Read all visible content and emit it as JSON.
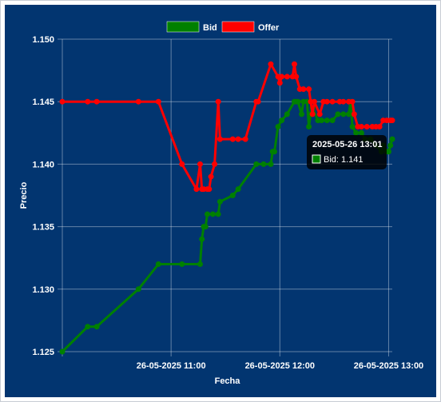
{
  "chart_data": {
    "type": "line",
    "xlabel": "Fecha",
    "ylabel": "Precio",
    "ylim": [
      1.125,
      1.15
    ],
    "yticks": [
      "1.125",
      "1.130",
      "1.135",
      "1.140",
      "1.145",
      "1.150"
    ],
    "xticks": [
      {
        "label": "26-05-2025 11:00",
        "minutes": 660
      },
      {
        "label": "26-05-2025 12:00",
        "minutes": 720
      },
      {
        "label": "26-05-2025 13:00",
        "minutes": 780
      }
    ],
    "xlim_minutes": [
      600,
      782
    ],
    "grid": true,
    "legend_position": "top",
    "series": [
      {
        "name": "Bid",
        "color": "#008000",
        "points": [
          [
            600,
            1.125
          ],
          [
            614,
            1.127
          ],
          [
            619,
            1.127
          ],
          [
            642,
            1.13
          ],
          [
            653,
            1.132
          ],
          [
            666,
            1.132
          ],
          [
            676,
            1.132
          ],
          [
            677,
            1.134
          ],
          [
            678,
            1.135
          ],
          [
            679,
            1.135
          ],
          [
            680,
            1.136
          ],
          [
            683,
            1.136
          ],
          [
            686,
            1.136
          ],
          [
            687,
            1.137
          ],
          [
            694,
            1.1375
          ],
          [
            697,
            1.138
          ],
          [
            707,
            1.14
          ],
          [
            711,
            1.14
          ],
          [
            715,
            1.14
          ],
          [
            716,
            1.141
          ],
          [
            717,
            1.141
          ],
          [
            719,
            1.143
          ],
          [
            721,
            1.1435
          ],
          [
            724,
            1.144
          ],
          [
            728,
            1.145
          ],
          [
            729,
            1.145
          ],
          [
            730,
            1.145
          ],
          [
            732,
            1.144
          ],
          [
            733,
            1.145
          ],
          [
            735,
            1.145
          ],
          [
            736,
            1.143
          ],
          [
            737,
            1.144
          ],
          [
            738,
            1.1445
          ],
          [
            741,
            1.1435
          ],
          [
            743,
            1.1435
          ],
          [
            746,
            1.1435
          ],
          [
            749,
            1.1435
          ],
          [
            752,
            1.144
          ],
          [
            755,
            1.144
          ],
          [
            758,
            1.144
          ],
          [
            759,
            1.145
          ],
          [
            760,
            1.143
          ],
          [
            762,
            1.1425
          ],
          [
            765,
            1.1425
          ],
          [
            767,
            1.142
          ],
          [
            770,
            1.142
          ],
          [
            773,
            1.1415
          ],
          [
            776,
            1.141
          ],
          [
            777,
            1.1415
          ],
          [
            779,
            1.141
          ],
          [
            780,
            1.141
          ],
          [
            781,
            1.1415
          ],
          [
            782,
            1.142
          ]
        ]
      },
      {
        "name": "Offer",
        "color": "#ff0000",
        "points": [
          [
            600,
            1.145
          ],
          [
            614,
            1.145
          ],
          [
            619,
            1.145
          ],
          [
            642,
            1.145
          ],
          [
            653,
            1.145
          ],
          [
            666,
            1.14
          ],
          [
            674,
            1.138
          ],
          [
            676,
            1.14
          ],
          [
            677,
            1.138
          ],
          [
            678,
            1.138
          ],
          [
            680,
            1.138
          ],
          [
            681,
            1.138
          ],
          [
            682,
            1.139
          ],
          [
            684,
            1.14
          ],
          [
            686,
            1.145
          ],
          [
            687,
            1.142
          ],
          [
            694,
            1.142
          ],
          [
            697,
            1.142
          ],
          [
            701,
            1.142
          ],
          [
            707,
            1.145
          ],
          [
            708,
            1.145
          ],
          [
            715,
            1.148
          ],
          [
            719,
            1.147
          ],
          [
            720,
            1.1465
          ],
          [
            721,
            1.147
          ],
          [
            724,
            1.147
          ],
          [
            727,
            1.147
          ],
          [
            728,
            1.148
          ],
          [
            729,
            1.147
          ],
          [
            731,
            1.146
          ],
          [
            733,
            1.146
          ],
          [
            736,
            1.146
          ],
          [
            737,
            1.145
          ],
          [
            738,
            1.144
          ],
          [
            739,
            1.145
          ],
          [
            742,
            1.144
          ],
          [
            744,
            1.145
          ],
          [
            746,
            1.145
          ],
          [
            749,
            1.145
          ],
          [
            753,
            1.145
          ],
          [
            755,
            1.145
          ],
          [
            758,
            1.145
          ],
          [
            760,
            1.145
          ],
          [
            761,
            1.144
          ],
          [
            763,
            1.143
          ],
          [
            765,
            1.143
          ],
          [
            768,
            1.143
          ],
          [
            771,
            1.143
          ],
          [
            773,
            1.143
          ],
          [
            775,
            1.143
          ],
          [
            777,
            1.1435
          ],
          [
            779,
            1.1435
          ],
          [
            781,
            1.1435
          ],
          [
            782,
            1.1435
          ]
        ]
      }
    ],
    "tooltip": {
      "title": "2025-05-26 13:01",
      "series": "Bid",
      "value": "1.141",
      "label": "Bid: 1.141"
    }
  }
}
